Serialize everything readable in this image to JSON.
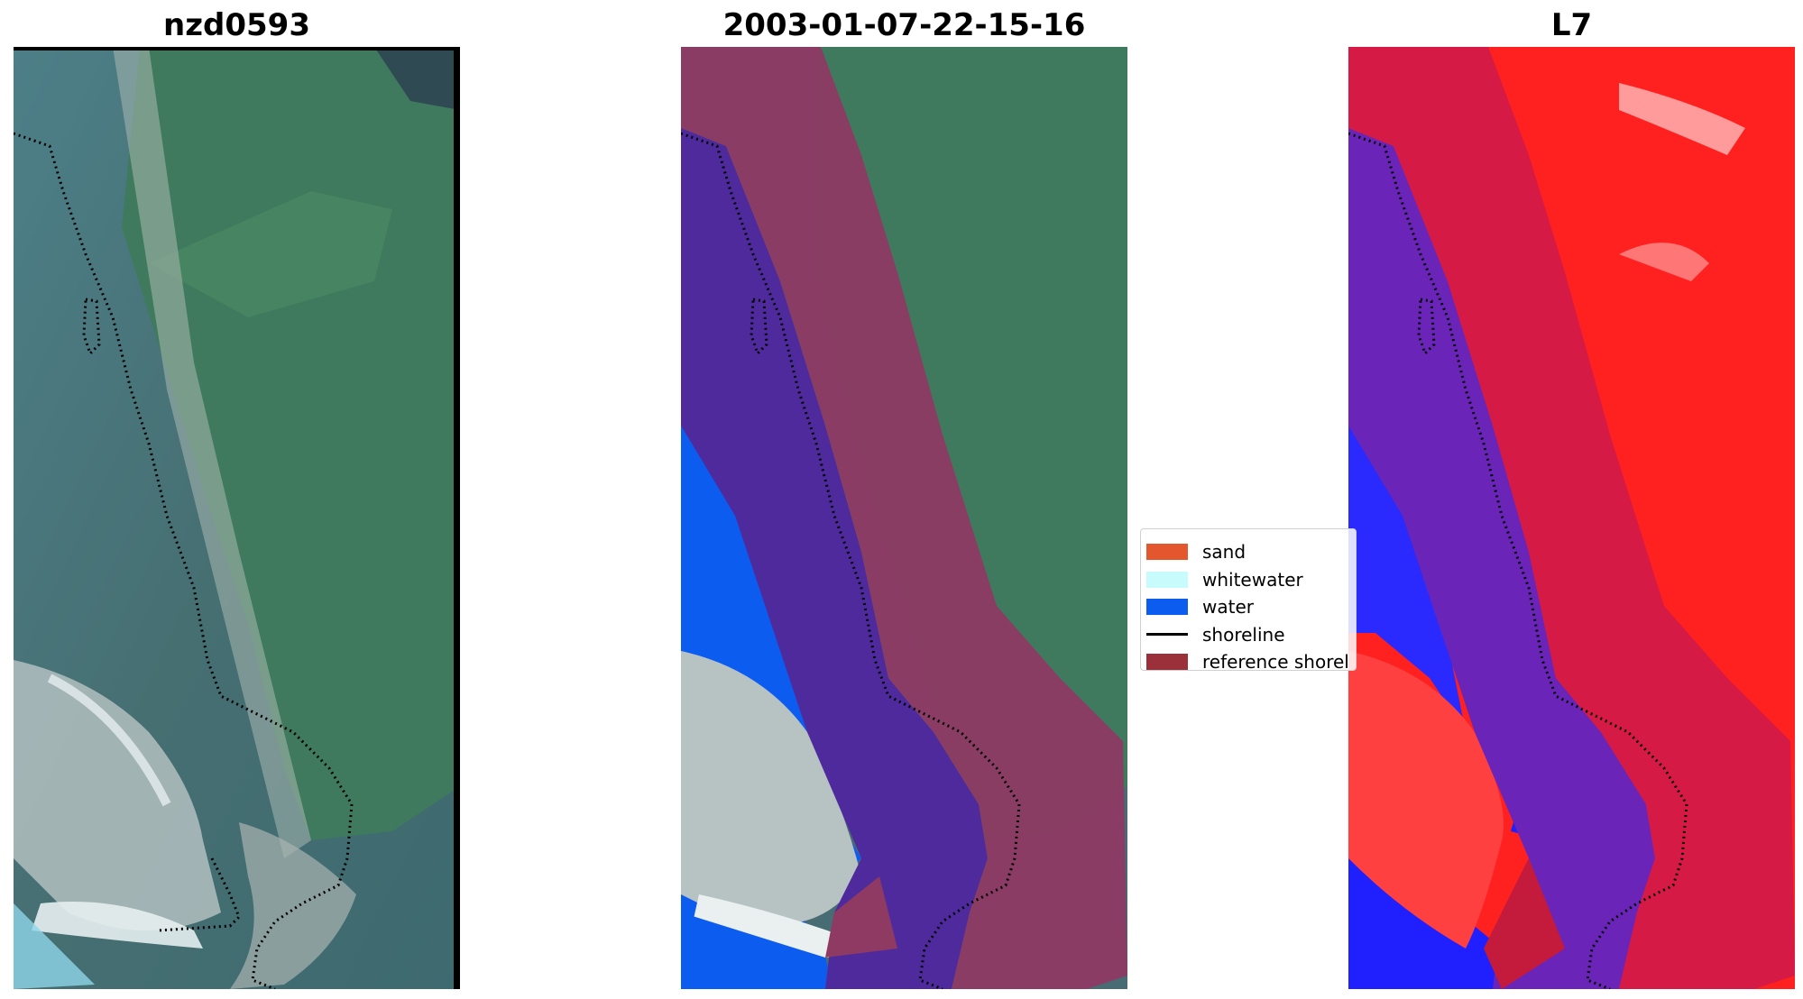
{
  "panels": [
    {
      "title": "nzd0593"
    },
    {
      "title": "2003-01-07-22-15-16"
    },
    {
      "title": "L7"
    }
  ],
  "legend": {
    "items": [
      {
        "label": "sand",
        "color": "#e4572e",
        "kind": "patch"
      },
      {
        "label": "whitewater",
        "color": "#c8fcfc",
        "kind": "patch"
      },
      {
        "label": "water",
        "color": "#0d5cf0",
        "kind": "patch"
      },
      {
        "label": "shoreline",
        "color": "#000000",
        "kind": "line"
      },
      {
        "label": "reference shorel",
        "color": "#9b2f3a",
        "kind": "patch"
      }
    ]
  },
  "colors": {
    "rgb_land": "#3f6f5c",
    "rgb_water": "#3f6680",
    "water_class": "#0d5cf0",
    "reference_buffer": "#8e3a63",
    "mndwi_positive": "#ff1a1a",
    "mndwi_negative": "#1a1aff"
  }
}
